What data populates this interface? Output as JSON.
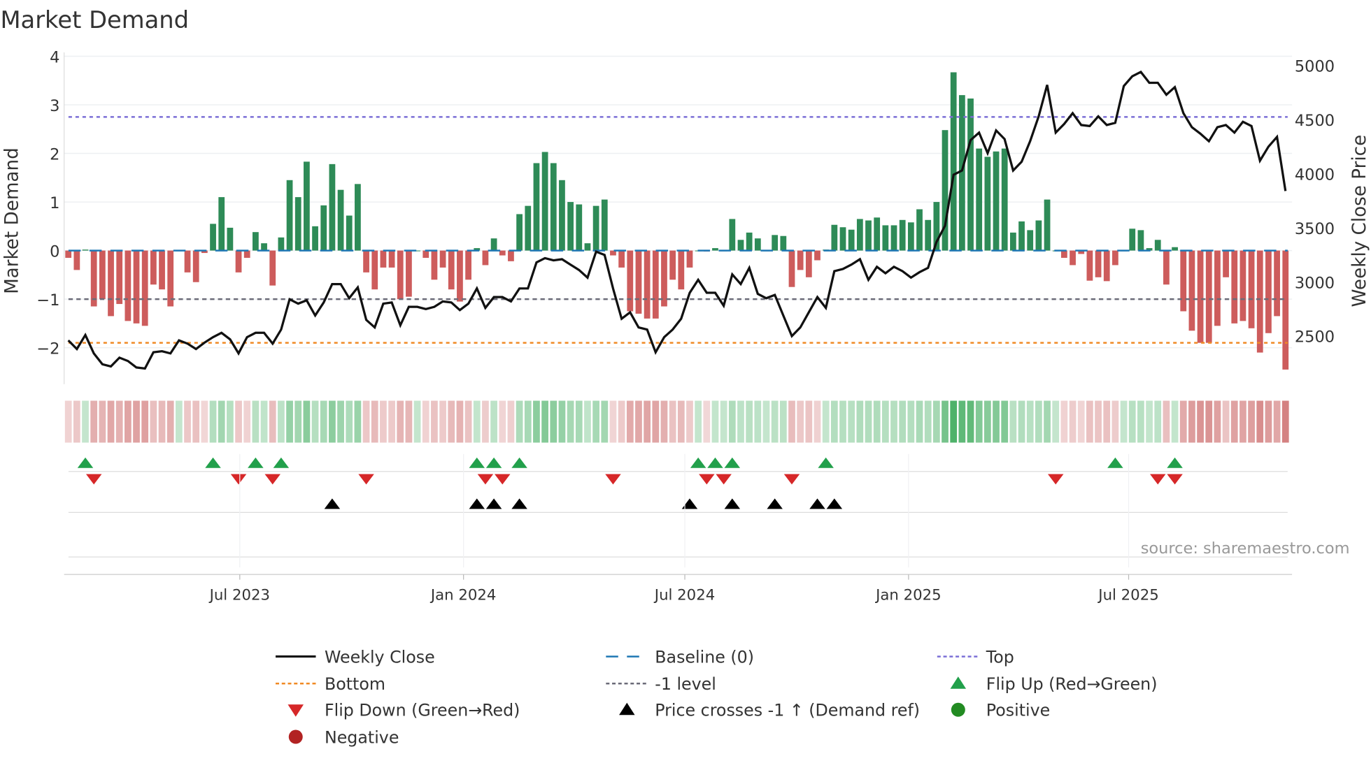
{
  "title": "Market Demand",
  "chart_data": {
    "type": "bar+line",
    "title": "Market Demand",
    "ylabel_left": "Market Demand",
    "ylabel_right": "Weekly Close Price",
    "ylim_left": [
      -2.75,
      4.08
    ],
    "ylim_right": [
      2056,
      5121
    ],
    "yticks_left": [
      {
        "v": 4,
        "label": "4"
      },
      {
        "v": 3,
        "label": "3"
      },
      {
        "v": 2,
        "label": "2"
      },
      {
        "v": 1,
        "label": "1"
      },
      {
        "v": 0,
        "label": "0"
      },
      {
        "v": -1,
        "label": "−1"
      },
      {
        "v": -2,
        "label": "−2"
      }
    ],
    "yticks_right": [
      {
        "v": 5000,
        "label": "5000"
      },
      {
        "v": 4500,
        "label": "4500"
      },
      {
        "v": 4000,
        "label": "4000"
      },
      {
        "v": 3500,
        "label": "3500"
      },
      {
        "v": 3000,
        "label": "3000"
      },
      {
        "v": 2500,
        "label": "2500"
      }
    ],
    "xticks": [
      {
        "date": "2023-07-01",
        "label": "Jul 2023"
      },
      {
        "date": "2024-01-01",
        "label": "Jan 2024"
      },
      {
        "date": "2024-07-01",
        "label": "Jul 2024"
      },
      {
        "date": "2025-01-01",
        "label": "Jan 2025"
      },
      {
        "date": "2025-07-01",
        "label": "Jul 2025"
      }
    ],
    "start_date": "2023-02-10",
    "frequency": "weekly",
    "grid": true,
    "levels": {
      "top": 2.75,
      "bottom": -1.9,
      "minus_one": -1,
      "baseline": 0
    },
    "demand": [
      -0.15,
      -0.4,
      0.02,
      -1.15,
      -1.0,
      -1.35,
      -1.1,
      -1.45,
      -1.5,
      -1.55,
      -0.7,
      -0.8,
      -1.15,
      0.0,
      -0.45,
      -0.65,
      -0.05,
      0.55,
      1.1,
      0.47,
      -0.45,
      -0.15,
      0.38,
      0.15,
      -0.72,
      0.27,
      1.45,
      1.1,
      1.83,
      0.5,
      0.93,
      1.78,
      1.25,
      0.72,
      1.37,
      -0.45,
      -0.8,
      -0.35,
      -0.35,
      -1.0,
      -0.95,
      0.0,
      -0.15,
      -0.6,
      -0.35,
      -0.8,
      -1.05,
      -0.6,
      0.05,
      -0.3,
      0.25,
      -0.1,
      -0.22,
      0.75,
      0.92,
      1.8,
      2.03,
      1.8,
      1.45,
      1.0,
      0.95,
      0.15,
      0.92,
      1.05,
      -0.1,
      -0.35,
      -1.25,
      -1.3,
      -1.4,
      -1.4,
      -1.15,
      -0.6,
      -0.8,
      -0.35,
      0.0,
      -0.02,
      0.05,
      0.0,
      0.65,
      0.22,
      0.37,
      0.25,
      0.0,
      0.32,
      0.3,
      -0.75,
      -0.4,
      -0.55,
      -0.2,
      0.02,
      0.53,
      0.48,
      0.43,
      0.65,
      0.62,
      0.68,
      0.52,
      0.52,
      0.63,
      0.58,
      0.85,
      0.63,
      1.0,
      2.48,
      3.67,
      3.2,
      3.13,
      2.1,
      1.93,
      2.04,
      2.1,
      0.37,
      0.6,
      0.42,
      0.62,
      1.05,
      0.0,
      -0.15,
      -0.3,
      -0.07,
      -0.62,
      -0.55,
      -0.63,
      -0.3,
      0.0,
      0.45,
      0.42,
      0.05,
      0.22,
      -0.7,
      0.07,
      -1.25,
      -1.65,
      -1.9,
      -1.9,
      -1.55,
      -0.55,
      -1.5,
      -1.45,
      -1.6,
      -2.1,
      -1.7,
      -1.35,
      -2.45
    ],
    "weekly_close": [
      2460,
      2380,
      2510,
      2340,
      2240,
      2220,
      2300,
      2270,
      2210,
      2200,
      2350,
      2360,
      2340,
      2460,
      2430,
      2380,
      2440,
      2490,
      2530,
      2470,
      2340,
      2490,
      2530,
      2530,
      2430,
      2560,
      2840,
      2800,
      2830,
      2690,
      2810,
      2980,
      2980,
      2850,
      2950,
      2650,
      2580,
      2800,
      2810,
      2600,
      2770,
      2770,
      2750,
      2770,
      2820,
      2810,
      2740,
      2800,
      2940,
      2760,
      2860,
      2860,
      2820,
      2940,
      2940,
      3180,
      3220,
      3200,
      3210,
      3160,
      3110,
      3040,
      3280,
      3250,
      2940,
      2660,
      2720,
      2580,
      2560,
      2350,
      2490,
      2560,
      2660,
      2900,
      3020,
      2900,
      2900,
      2780,
      3070,
      2980,
      3130,
      2890,
      2850,
      2880,
      2690,
      2500,
      2580,
      2720,
      2860,
      2760,
      3100,
      3120,
      3160,
      3210,
      3020,
      3140,
      3080,
      3140,
      3100,
      3040,
      3090,
      3130,
      3370,
      3520,
      3990,
      4030,
      4310,
      4380,
      4190,
      4400,
      4320,
      4030,
      4110,
      4300,
      4530,
      4820,
      4380,
      4460,
      4560,
      4450,
      4440,
      4530,
      4450,
      4470,
      4810,
      4900,
      4940,
      4840,
      4840,
      4730,
      4800,
      4560,
      4430,
      4370,
      4300,
      4430,
      4450,
      4380,
      4480,
      4440,
      4120,
      4250,
      4340,
      3840
    ],
    "flip_up_weeks": [
      2,
      17,
      22,
      25,
      48,
      50,
      53,
      74,
      76,
      78,
      89,
      123,
      130
    ],
    "flip_down_weeks": [
      3,
      20,
      24,
      35,
      49,
      51,
      64,
      75,
      77,
      85,
      116,
      128,
      130
    ],
    "price_cross_weeks": [
      31,
      48,
      50,
      53,
      73,
      78,
      83,
      88,
      90
    ],
    "colors": {
      "positive": "#2e8b57",
      "negative": "#cd5c5c",
      "close": "#111111",
      "baseline": "#1f77b4",
      "top": "#7b6fd6",
      "bottom": "#f08a24",
      "minus_one": "#6b6b78",
      "flip_up": "#22a04b",
      "flip_down": "#d62728",
      "cross": "#000000",
      "pos_dot": "#228b22",
      "neg_dot": "#b22222"
    }
  },
  "source": "source: sharemaestro.com",
  "legend": {
    "items": [
      {
        "label": "Weekly Close"
      },
      {
        "label": "Baseline (0)"
      },
      {
        "label": "Top"
      },
      {
        "label": "Bottom"
      },
      {
        "label": "-1 level"
      },
      {
        "label": "Flip Up (Red→Green)"
      },
      {
        "label": "Flip Down (Green→Red)"
      },
      {
        "label": "Price crosses -1 ↑ (Demand ref)"
      },
      {
        "label": "Positive"
      },
      {
        "label": "Negative"
      }
    ]
  }
}
